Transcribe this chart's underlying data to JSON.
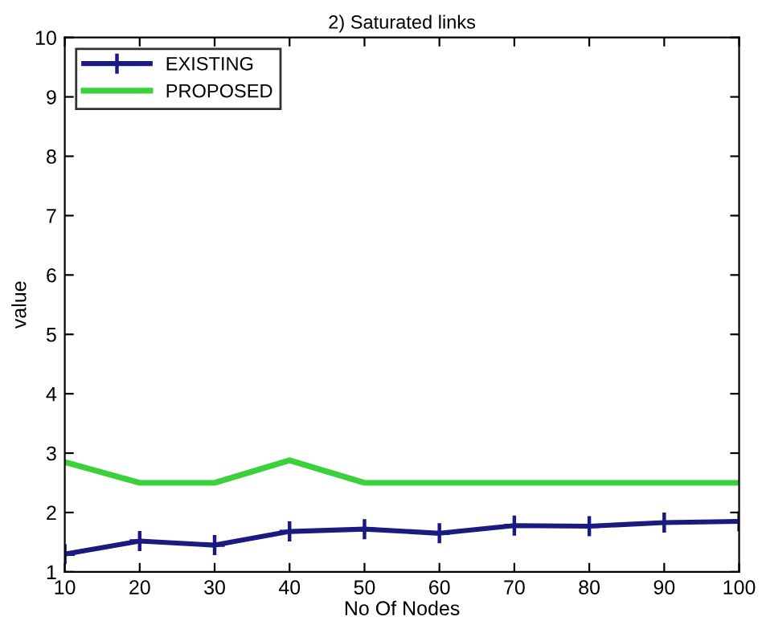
{
  "chart_data": {
    "type": "line",
    "title": "2) Saturated links",
    "xlabel": "No Of Nodes",
    "ylabel": "value",
    "x": [
      10,
      20,
      30,
      40,
      50,
      60,
      70,
      80,
      90,
      100
    ],
    "series": [
      {
        "name": "EXISTING",
        "color": "#1a1a80",
        "marker": "cross",
        "values": [
          1.3,
          1.52,
          1.45,
          1.68,
          1.72,
          1.65,
          1.78,
          1.77,
          1.83,
          1.85
        ]
      },
      {
        "name": "PROPOSED",
        "color": "#3ad13a",
        "marker": "none",
        "values": [
          2.85,
          2.5,
          2.5,
          2.88,
          2.5,
          2.5,
          2.5,
          2.5,
          2.5,
          2.5
        ]
      }
    ],
    "xlim": [
      10,
      100
    ],
    "xticks": [
      10,
      20,
      30,
      40,
      50,
      60,
      70,
      80,
      90,
      100
    ],
    "ylim": [
      1,
      10
    ],
    "yticks": [
      1,
      2,
      3,
      4,
      5,
      6,
      7,
      8,
      9,
      10
    ],
    "grid": false,
    "legend": "top left",
    "line_style": "solid"
  }
}
